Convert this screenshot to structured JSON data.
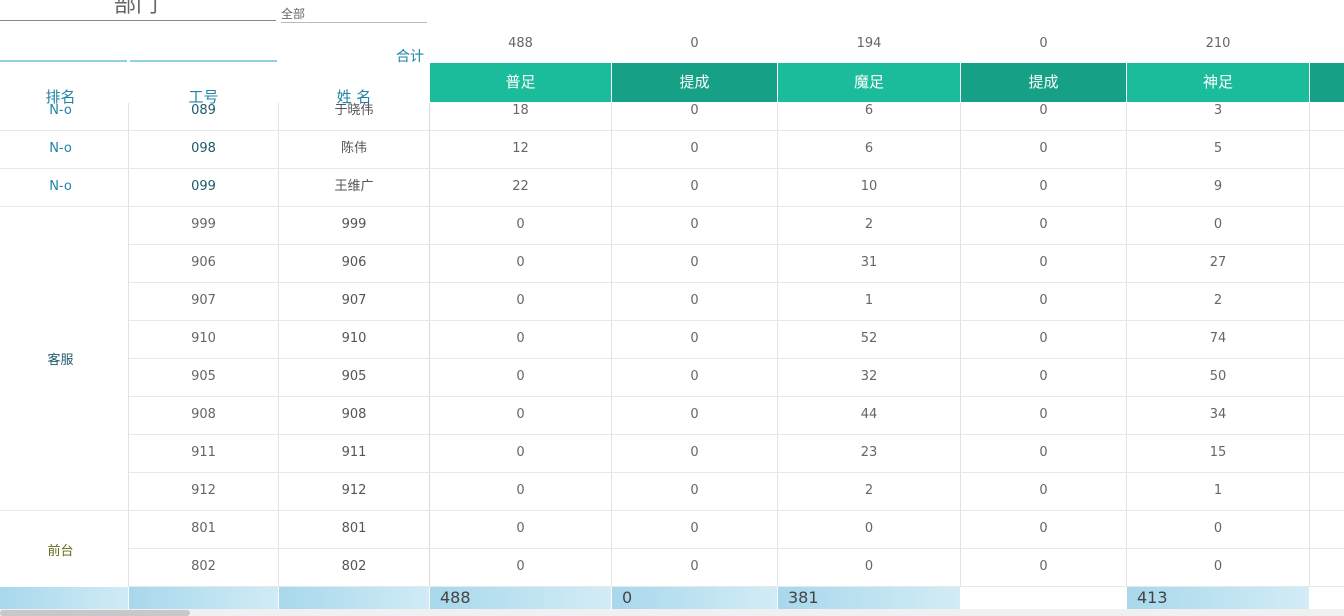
{
  "filter": {
    "dept_label": "部门",
    "dept_value": "全部"
  },
  "totals": {
    "label": "合计",
    "values": [
      "488",
      "0",
      "194",
      "0",
      "210"
    ]
  },
  "header": {
    "rank": "排名",
    "id": "工号",
    "name": "姓 名",
    "columns": [
      "普足",
      "提成",
      "魔足",
      "提成",
      "神足"
    ]
  },
  "rows": [
    {
      "rank": "N-o",
      "id": "089",
      "name": "于晓伟",
      "vals": [
        "18",
        "0",
        "6",
        "0",
        "3"
      ]
    },
    {
      "rank": "N-o",
      "id": "098",
      "name": "陈伟",
      "vals": [
        "12",
        "0",
        "6",
        "0",
        "5"
      ]
    },
    {
      "rank": "N-o",
      "id": "099",
      "name": "王维广",
      "vals": [
        "22",
        "0",
        "10",
        "0",
        "9"
      ]
    },
    {
      "rank": "",
      "id": "999",
      "name": "999",
      "vals": [
        "0",
        "0",
        "2",
        "0",
        "0"
      ]
    },
    {
      "rank": "",
      "id": "906",
      "name": "906",
      "vals": [
        "0",
        "0",
        "31",
        "0",
        "27"
      ]
    },
    {
      "rank": "",
      "id": "907",
      "name": "907",
      "vals": [
        "0",
        "0",
        "1",
        "0",
        "2"
      ]
    },
    {
      "rank": "",
      "id": "910",
      "name": "910",
      "vals": [
        "0",
        "0",
        "52",
        "0",
        "74"
      ]
    },
    {
      "rank": "",
      "id": "905",
      "name": "905",
      "vals": [
        "0",
        "0",
        "32",
        "0",
        "50"
      ]
    },
    {
      "rank": "",
      "id": "908",
      "name": "908",
      "vals": [
        "0",
        "0",
        "44",
        "0",
        "34"
      ]
    },
    {
      "rank": "",
      "id": "911",
      "name": "911",
      "vals": [
        "0",
        "0",
        "23",
        "0",
        "15"
      ]
    },
    {
      "rank": "",
      "id": "912",
      "name": "912",
      "vals": [
        "0",
        "0",
        "2",
        "0",
        "1"
      ]
    },
    {
      "rank": "",
      "id": "801",
      "name": "801",
      "vals": [
        "0",
        "0",
        "0",
        "0",
        "0"
      ]
    },
    {
      "rank": "",
      "id": "802",
      "name": "802",
      "vals": [
        "0",
        "0",
        "0",
        "0",
        "0"
      ]
    }
  ],
  "groups": [
    {
      "label": "客服",
      "color": "#1f5a6a"
    },
    {
      "label": "前台",
      "color": "#6b6b1a"
    }
  ],
  "footer": {
    "values": [
      "488",
      "0",
      "381",
      "",
      "413"
    ]
  },
  "colors": {
    "header_light": "#1bbc9b",
    "header_dark": "#16a085",
    "accent_text": "#1f83a8",
    "footer_bg": "#a8d8ec"
  }
}
